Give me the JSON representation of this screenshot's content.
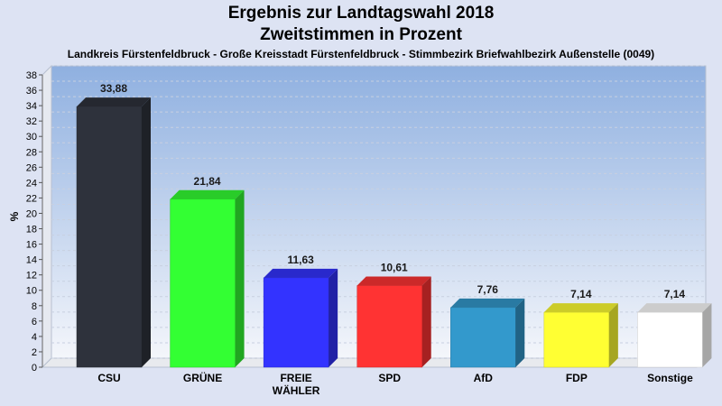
{
  "header": {
    "title_line1": "Ergebnis zur Landtagswahl 2018",
    "title_line2": "Zweitstimmen in Prozent",
    "subtitle": "Landkreis Fürstenfeldbruck - Große Kreisstadt Fürstenfeldbruck - Stimmbezirk Briefwahlbezirk Außenstelle (0049)"
  },
  "chart_data": {
    "type": "bar",
    "title": "Ergebnis zur Landtagswahl 2018",
    "subtitle": "Zweitstimmen in Prozent",
    "xlabel": "",
    "ylabel": "%",
    "ylim": [
      0,
      38
    ],
    "ytick_step": 2,
    "grid": true,
    "categories": [
      "CSU",
      "GRÜNE",
      "FREIE WÄHLER",
      "SPD",
      "AfD",
      "FDP",
      "Sonstige"
    ],
    "category_lines": [
      [
        "CSU"
      ],
      [
        "GRÜNE"
      ],
      [
        "FREIE",
        "WÄHLER"
      ],
      [
        "SPD"
      ],
      [
        "AfD"
      ],
      [
        "FDP"
      ],
      [
        "Sonstige"
      ]
    ],
    "values": [
      33.88,
      21.84,
      11.63,
      10.61,
      7.76,
      7.14,
      7.14
    ],
    "value_labels": [
      "33,88",
      "21,84",
      "11,63",
      "10,61",
      "7,76",
      "7,14",
      "7,14"
    ],
    "colors": [
      "#2e323c",
      "#33ff33",
      "#3333ff",
      "#ff3333",
      "#3399cc",
      "#ffff33",
      "#ffffff"
    ]
  }
}
